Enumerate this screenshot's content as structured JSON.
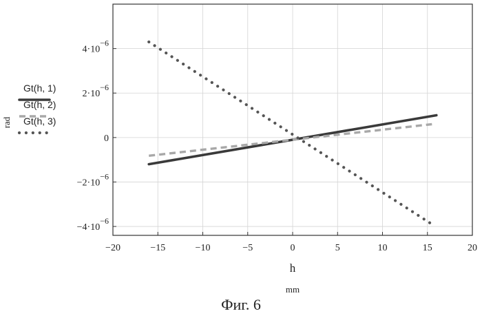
{
  "chart_data": {
    "type": "line",
    "xlabel": "h",
    "xunit": "mm",
    "ylabel": "rad",
    "xlim": [
      -20,
      20
    ],
    "ylim": [
      -4.4e-06,
      6e-06
    ],
    "grid": true,
    "legend_position": "left",
    "x_ticks": [
      {
        "value": -20,
        "label": "−20"
      },
      {
        "value": -15,
        "label": "−15"
      },
      {
        "value": -10,
        "label": "−10"
      },
      {
        "value": -5,
        "label": "−5"
      },
      {
        "value": 0,
        "label": "0"
      },
      {
        "value": 5,
        "label": "5"
      },
      {
        "value": 10,
        "label": "10"
      },
      {
        "value": 15,
        "label": "15"
      },
      {
        "value": 20,
        "label": "20"
      }
    ],
    "y_ticks": [
      {
        "value": 4e-06,
        "mant": "4·10",
        "exp": "−6"
      },
      {
        "value": 2e-06,
        "mant": "2·10",
        "exp": "−6"
      },
      {
        "value": 0,
        "mant": "0",
        "exp": ""
      },
      {
        "value": -2e-06,
        "mant": "−2·10",
        "exp": "−6"
      },
      {
        "value": -4e-06,
        "mant": "−4·10",
        "exp": "−6"
      }
    ],
    "series": [
      {
        "name": "Gt(h, 1)",
        "style": "solid",
        "color": "#3a3a3a",
        "x": [
          -16,
          16
        ],
        "y": [
          -1.2e-06,
          1e-06
        ]
      },
      {
        "name": "Gt(h, 2)",
        "style": "dashed",
        "color": "#a8a8a8",
        "x": [
          -16,
          15.5
        ],
        "y": [
          -8.2e-07,
          6e-07
        ]
      },
      {
        "name": "Gt(h, 3)",
        "style": "dotted",
        "color": "#555555",
        "x": [
          -16,
          15.5
        ],
        "y": [
          4.3e-06,
          -3.9e-06
        ]
      }
    ]
  },
  "caption": "Фиг. 6"
}
